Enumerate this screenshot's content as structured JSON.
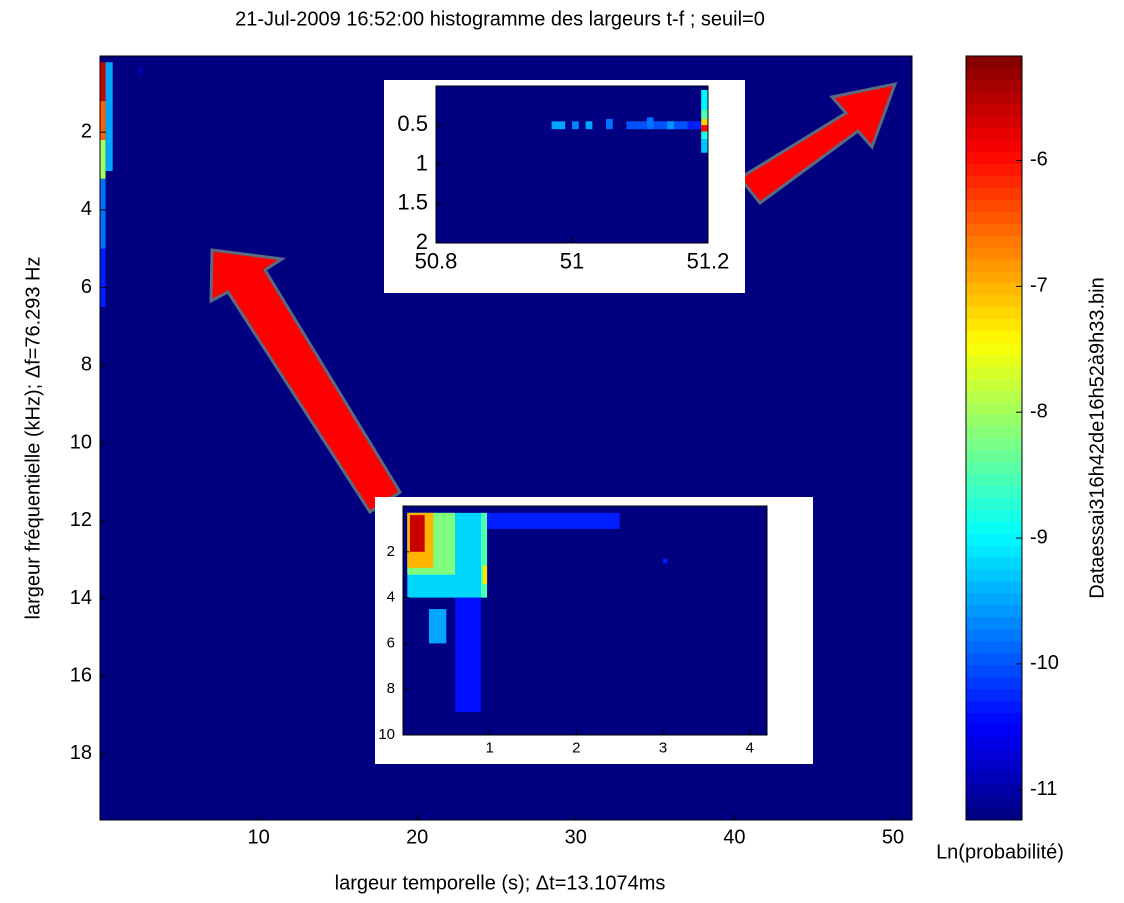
{
  "chart_data": [
    {
      "type": "heatmap",
      "title": "21-Jul-2009 16:52:00 histogramme des largeurs t-f ; seuil=0",
      "x_label": "largeur temporelle (s); Δt=13.1074ms",
      "y_label": "largeur fréquentielle (kHz); Δf=76.293 Hz",
      "xlim": [
        0,
        51.2
      ],
      "ylim": [
        0.04,
        19.7
      ],
      "y_reversed": true,
      "xticks": [
        10,
        20,
        30,
        40,
        50
      ],
      "yticks": [
        2,
        4,
        6,
        8,
        10,
        12,
        14,
        16,
        18
      ],
      "clim": [
        -11.24,
        -5.17
      ],
      "colorbar_ticks": [
        -6,
        -7,
        -8,
        -9,
        -10,
        -11
      ],
      "colorbar_label": "Dataessai316h42de16h52à9h33.bin",
      "colorbar_title": "Ln(probabilité)",
      "background": -11.24,
      "cells": [
        [
          0,
          0.35,
          0.2,
          1.2,
          -5.6
        ],
        [
          0,
          0.35,
          1.2,
          2.2,
          -6.5
        ],
        [
          0,
          0.35,
          2.2,
          3.2,
          -8
        ],
        [
          0.35,
          0.8,
          0.2,
          3,
          -9.5
        ],
        [
          0,
          0.35,
          3.2,
          5,
          -9.8
        ],
        [
          0,
          0.35,
          5,
          6.5,
          -10.3
        ],
        [
          2.5,
          2.6,
          0.3,
          0.5,
          -10.5
        ]
      ]
    },
    {
      "type": "heatmap",
      "xlim": [
        50.8,
        51.2
      ],
      "ylim": [
        0,
        2
      ],
      "y_reversed": true,
      "xticks": [
        50.8,
        51,
        51.2
      ],
      "yticks": [
        0.5,
        1,
        1.5,
        2
      ],
      "background": -11.24,
      "cells": [
        [
          50.97,
          50.99,
          0.45,
          0.55,
          -9.5
        ],
        [
          51.0,
          51.01,
          0.45,
          0.55,
          -9.7
        ],
        [
          51.02,
          51.03,
          0.45,
          0.55,
          -9.5
        ],
        [
          51.05,
          51.06,
          0.42,
          0.55,
          -9.8
        ],
        [
          51.08,
          51.19,
          0.45,
          0.55,
          -10
        ],
        [
          51.11,
          51.12,
          0.4,
          0.55,
          -9.8
        ],
        [
          51.14,
          51.15,
          0.45,
          0.55,
          -9.6
        ],
        [
          51.17,
          51.19,
          0.45,
          0.55,
          -10.3
        ],
        [
          51.19,
          51.2,
          0.05,
          0.3,
          -9
        ],
        [
          51.19,
          51.2,
          0.3,
          0.42,
          -8.5
        ],
        [
          51.19,
          51.2,
          0.42,
          0.5,
          -7.2
        ],
        [
          51.19,
          51.2,
          0.5,
          0.58,
          -6
        ],
        [
          51.19,
          51.2,
          0.58,
          0.68,
          -8.8
        ],
        [
          51.19,
          51.2,
          0.68,
          0.85,
          -9.3
        ]
      ]
    },
    {
      "type": "heatmap",
      "xlim": [
        0,
        4.2
      ],
      "ylim": [
        0,
        10
      ],
      "y_reversed": true,
      "xticks": [
        1,
        2,
        3,
        4
      ],
      "yticks": [
        2,
        4,
        6,
        8,
        10
      ],
      "background": -11.24,
      "cells": [
        [
          0.05,
          0.9,
          0.3,
          4,
          -9.2
        ],
        [
          0.05,
          0.6,
          0.3,
          3,
          -8.2
        ],
        [
          0.05,
          0.35,
          0.3,
          2.7,
          -7
        ],
        [
          0.08,
          0.25,
          0.4,
          2,
          -5.6
        ],
        [
          0.9,
          0.97,
          0.3,
          4,
          -8.5
        ],
        [
          0.92,
          0.97,
          2.6,
          3.4,
          -7.3
        ],
        [
          0.3,
          0.5,
          4.5,
          6,
          -9.5
        ],
        [
          0.97,
          2.5,
          0.3,
          1,
          -10.3
        ],
        [
          0.6,
          0.9,
          4,
          9,
          -10.4
        ],
        [
          3.0,
          3.05,
          2.3,
          2.5,
          -10.3
        ]
      ]
    }
  ]
}
